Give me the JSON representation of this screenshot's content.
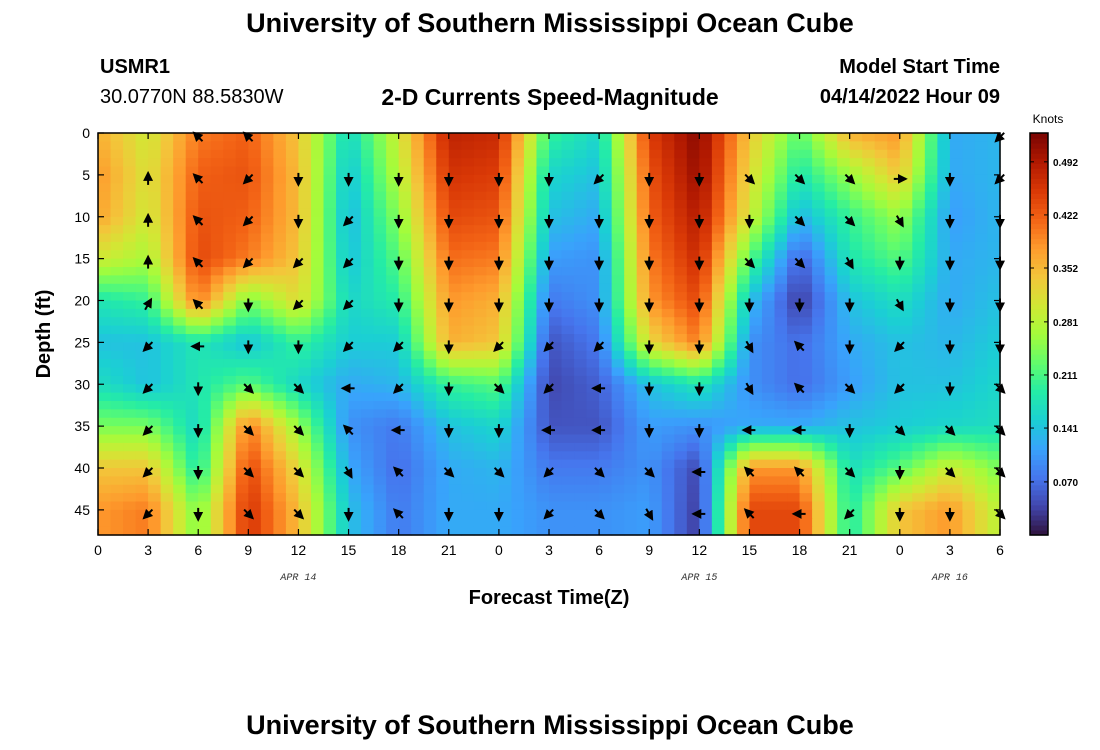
{
  "title": "University of Southern Mississippi Ocean Cube",
  "footer_title": "University of Southern Mississippi Ocean Cube",
  "station": {
    "name": "USMR1",
    "coords": "30.0770N  88.5830W"
  },
  "subtitle": "2-D Currents Speed-Magnitude",
  "model": {
    "label": "Model Start Time",
    "time": "04/14/2022 Hour 09"
  },
  "chart_data": {
    "type": "heatmap",
    "title": "2-D Currents Speed-Magnitude",
    "xlabel": "Forecast Time(Z)",
    "ylabel": "Depth (ft)",
    "x_hours_range": [
      0,
      54
    ],
    "x_tick_labels": [
      "0",
      "3",
      "6",
      "9",
      "12",
      "15",
      "18",
      "21",
      "0",
      "3",
      "6",
      "9",
      "12",
      "15",
      "18",
      "21",
      "0",
      "3",
      "6"
    ],
    "x_date_labels": [
      {
        "text": "APR 14",
        "hour": 12
      },
      {
        "text": "APR 15",
        "hour": 36
      },
      {
        "text": "APR 16",
        "hour": 51
      }
    ],
    "y_range": [
      0,
      48
    ],
    "y_ticks": [
      0,
      5,
      10,
      15,
      20,
      25,
      30,
      35,
      40,
      45
    ],
    "colorbar": {
      "unit": "Knots",
      "range": [
        0.0,
        0.53
      ],
      "ticks": [
        "0.492",
        "0.422",
        "0.352",
        "0.281",
        "0.211",
        "0.141",
        "0.070"
      ],
      "tick_values": [
        0.492,
        0.422,
        0.352,
        0.281,
        0.211,
        0.141,
        0.07
      ]
    },
    "colormap": [
      "#30123b",
      "#4145ab",
      "#4675ed",
      "#39a2fc",
      "#1bcfd4",
      "#24eca6",
      "#61fc6c",
      "#a4fc3b",
      "#d1e834",
      "#f3c63a",
      "#fe9b2d",
      "#f36315",
      "#d93806",
      "#b11901",
      "#7a0402"
    ],
    "depths": [
      0,
      5,
      10,
      15,
      20,
      25,
      30,
      35,
      40,
      45
    ],
    "hours": [
      0,
      3,
      6,
      9,
      12,
      15,
      18,
      21,
      24,
      27,
      30,
      33,
      36,
      39,
      42,
      45,
      48,
      51,
      54
    ],
    "speed": [
      [
        0.36,
        0.3,
        0.4,
        0.42,
        0.34,
        0.16,
        0.3,
        0.48,
        0.47,
        0.2,
        0.16,
        0.45,
        0.52,
        0.34,
        0.22,
        0.36,
        0.38,
        0.12,
        0.13
      ],
      [
        0.38,
        0.31,
        0.42,
        0.43,
        0.35,
        0.14,
        0.28,
        0.46,
        0.45,
        0.16,
        0.14,
        0.43,
        0.51,
        0.32,
        0.18,
        0.26,
        0.34,
        0.12,
        0.13
      ],
      [
        0.37,
        0.3,
        0.43,
        0.42,
        0.35,
        0.13,
        0.25,
        0.44,
        0.43,
        0.14,
        0.12,
        0.42,
        0.49,
        0.3,
        0.13,
        0.2,
        0.26,
        0.11,
        0.13
      ],
      [
        0.3,
        0.27,
        0.44,
        0.4,
        0.34,
        0.14,
        0.22,
        0.41,
        0.4,
        0.11,
        0.1,
        0.4,
        0.47,
        0.22,
        0.06,
        0.18,
        0.22,
        0.12,
        0.13
      ],
      [
        0.18,
        0.2,
        0.4,
        0.24,
        0.32,
        0.16,
        0.19,
        0.38,
        0.36,
        0.08,
        0.1,
        0.38,
        0.44,
        0.14,
        0.03,
        0.14,
        0.17,
        0.12,
        0.14
      ],
      [
        0.14,
        0.14,
        0.18,
        0.14,
        0.2,
        0.15,
        0.15,
        0.36,
        0.34,
        0.05,
        0.08,
        0.32,
        0.4,
        0.1,
        0.07,
        0.12,
        0.14,
        0.13,
        0.15
      ],
      [
        0.17,
        0.14,
        0.18,
        0.22,
        0.16,
        0.12,
        0.13,
        0.2,
        0.22,
        0.04,
        0.06,
        0.14,
        0.18,
        0.1,
        0.07,
        0.11,
        0.14,
        0.14,
        0.16
      ],
      [
        0.24,
        0.24,
        0.16,
        0.4,
        0.26,
        0.1,
        0.08,
        0.14,
        0.16,
        0.05,
        0.05,
        0.11,
        0.1,
        0.12,
        0.12,
        0.14,
        0.15,
        0.16,
        0.17
      ],
      [
        0.34,
        0.34,
        0.18,
        0.44,
        0.32,
        0.12,
        0.07,
        0.12,
        0.13,
        0.08,
        0.08,
        0.1,
        0.04,
        0.38,
        0.38,
        0.17,
        0.22,
        0.3,
        0.24
      ],
      [
        0.38,
        0.4,
        0.24,
        0.46,
        0.35,
        0.14,
        0.08,
        0.12,
        0.12,
        0.1,
        0.1,
        0.11,
        0.03,
        0.44,
        0.44,
        0.18,
        0.34,
        0.38,
        0.28
      ]
    ],
    "arrow_directions_deg": [
      [
        null,
        null,
        135,
        135,
        null,
        null,
        null,
        null,
        null,
        null,
        null,
        null,
        null,
        null,
        null,
        null,
        null,
        null,
        225
      ],
      [
        null,
        90,
        135,
        225,
        270,
        270,
        270,
        270,
        270,
        270,
        225,
        270,
        270,
        315,
        315,
        315,
        0,
        270,
        225
      ],
      [
        null,
        90,
        135,
        225,
        270,
        225,
        270,
        270,
        270,
        270,
        270,
        270,
        270,
        270,
        315,
        315,
        300,
        270,
        270
      ],
      [
        null,
        90,
        135,
        225,
        225,
        225,
        270,
        270,
        270,
        270,
        270,
        270,
        270,
        315,
        315,
        300,
        270,
        270,
        270
      ],
      [
        null,
        60,
        135,
        270,
        225,
        225,
        270,
        270,
        270,
        270,
        270,
        270,
        270,
        270,
        270,
        270,
        300,
        270,
        270
      ],
      [
        null,
        225,
        180,
        270,
        270,
        225,
        225,
        270,
        225,
        225,
        225,
        270,
        270,
        300,
        135,
        270,
        225,
        270,
        270
      ],
      [
        null,
        225,
        270,
        315,
        315,
        180,
        225,
        270,
        315,
        225,
        180,
        270,
        270,
        300,
        135,
        315,
        225,
        270,
        315
      ],
      [
        null,
        225,
        270,
        315,
        315,
        135,
        180,
        270,
        270,
        180,
        180,
        270,
        270,
        180,
        180,
        270,
        315,
        315,
        315
      ],
      [
        null,
        225,
        270,
        315,
        315,
        300,
        135,
        315,
        315,
        225,
        315,
        315,
        180,
        135,
        135,
        315,
        270,
        315,
        315
      ],
      [
        null,
        225,
        270,
        315,
        315,
        270,
        135,
        270,
        270,
        225,
        315,
        300,
        180,
        135,
        180,
        225,
        270,
        270,
        315
      ]
    ]
  }
}
